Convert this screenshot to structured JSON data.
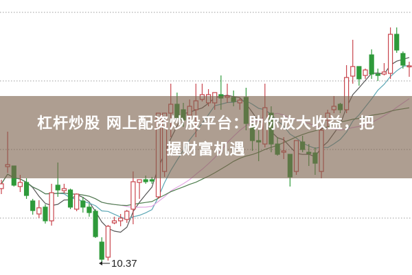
{
  "headline": {
    "line1": "杠杆炒股 网上配资炒股平台：助你放大收益，把",
    "line2": "握财富机遇"
  },
  "chart_data": {
    "type": "candlestick",
    "title": "",
    "grid": "horizontal-dotted",
    "ylim": [
      10.2,
      14.21
    ],
    "colors": {
      "up": "#c8434b",
      "down": "#2e9a3a",
      "ma5": "#555555",
      "ma10": "#5aa6b4",
      "ma20": "#e3a6e3",
      "ma30": "#4d7d4d"
    },
    "annotation": {
      "label": "10.37",
      "value": 10.37
    },
    "ohlc": [
      [
        11.46,
        11.59,
        11.38,
        11.53
      ],
      [
        11.78,
        12.29,
        11.69,
        11.81
      ],
      [
        11.79,
        11.79,
        11.49,
        11.51
      ],
      [
        11.49,
        11.66,
        11.41,
        11.55
      ],
      [
        11.55,
        11.61,
        11.31,
        11.36
      ],
      [
        11.28,
        11.31,
        11.08,
        11.14
      ],
      [
        11.09,
        11.29,
        11.03,
        11.18
      ],
      [
        11.19,
        11.23,
        10.95,
        10.99
      ],
      [
        10.99,
        11.53,
        10.92,
        11.4
      ],
      [
        11.51,
        11.84,
        11.34,
        11.44
      ],
      [
        11.43,
        11.53,
        11.39,
        11.46
      ],
      [
        11.44,
        11.46,
        11.16,
        11.19
      ],
      [
        11.16,
        11.39,
        11.13,
        11.38
      ],
      [
        11.28,
        11.34,
        11.11,
        11.19
      ],
      [
        11.19,
        11.24,
        11.05,
        11.11
      ],
      [
        11.13,
        11.16,
        10.74,
        10.76
      ],
      [
        10.68,
        10.75,
        10.37,
        10.43
      ],
      [
        10.46,
        10.93,
        10.41,
        10.91
      ],
      [
        10.96,
        11.05,
        10.94,
        10.99
      ],
      [
        10.99,
        11.09,
        10.91,
        11.03
      ],
      [
        11.01,
        11.15,
        10.96,
        11.13
      ],
      [
        11.16,
        11.71,
        10.94,
        11.56
      ],
      [
        11.55,
        11.59,
        11.31,
        11.59
      ],
      [
        11.59,
        11.65,
        11.53,
        11.56
      ],
      [
        11.59,
        11.63,
        11.53,
        11.57
      ],
      [
        11.34,
        12.56,
        11.31,
        12.56
      ],
      [
        11.71,
        12.56,
        11.63,
        12.56
      ],
      [
        12.56,
        12.99,
        12.21,
        12.69
      ],
      [
        12.69,
        12.86,
        12.46,
        12.49
      ],
      [
        12.61,
        12.71,
        12.36,
        12.46
      ],
      [
        12.53,
        12.76,
        12.46,
        12.66
      ],
      [
        12.61,
        12.99,
        12.21,
        12.74
      ],
      [
        12.76,
        12.99,
        12.73,
        12.83
      ],
      [
        12.71,
        12.91,
        12.66,
        12.83
      ],
      [
        12.71,
        12.86,
        12.61,
        12.86
      ],
      [
        12.83,
        13.11,
        12.61,
        12.78
      ],
      [
        12.79,
        12.99,
        12.71,
        12.81
      ],
      [
        12.79,
        12.89,
        12.66,
        12.73
      ],
      [
        12.71,
        12.79,
        12.61,
        12.75
      ],
      [
        12.79,
        12.93,
        12.31,
        12.41
      ],
      [
        12.36,
        12.41,
        12.01,
        12.16
      ],
      [
        12.16,
        12.31,
        11.86,
        12.14
      ],
      [
        12.11,
        12.99,
        12.06,
        12.64
      ],
      [
        12.56,
        12.66,
        11.99,
        12.11
      ],
      [
        12.11,
        12.21,
        11.94,
        11.96
      ],
      [
        11.99,
        12.21,
        11.89,
        12.01
      ],
      [
        11.96,
        11.96,
        11.49,
        11.63
      ],
      [
        11.71,
        12.16,
        11.66,
        12.16
      ],
      [
        12.14,
        12.23,
        11.99,
        12.03
      ],
      [
        11.99,
        12.11,
        11.79,
        11.97
      ],
      [
        11.98,
        12.06,
        11.66,
        11.83
      ],
      [
        11.71,
        12.36,
        11.61,
        12.31
      ],
      [
        12.46,
        12.61,
        12.36,
        12.56
      ],
      [
        12.61,
        12.81,
        12.56,
        12.66
      ],
      [
        12.69,
        12.71,
        12.56,
        12.61
      ],
      [
        12.61,
        13.26,
        12.56,
        13.08
      ],
      [
        13.1,
        13.63,
        12.99,
        13.24
      ],
      [
        13.24,
        13.24,
        12.96,
        13.06
      ],
      [
        13.11,
        13.21,
        13.06,
        13.19
      ],
      [
        13.41,
        13.49,
        13.06,
        13.13
      ],
      [
        13.13,
        13.21,
        13.03,
        13.11
      ],
      [
        13.13,
        13.29,
        13.11,
        13.16
      ],
      [
        13.14,
        13.81,
        13.06,
        13.71
      ],
      [
        13.71,
        13.81,
        13.44,
        13.48
      ],
      [
        13.43,
        13.46,
        13.21,
        13.26
      ],
      [
        13.24,
        13.31,
        13.09,
        13.25
      ]
    ],
    "moving_averages": [
      5,
      10,
      20,
      30
    ]
  }
}
